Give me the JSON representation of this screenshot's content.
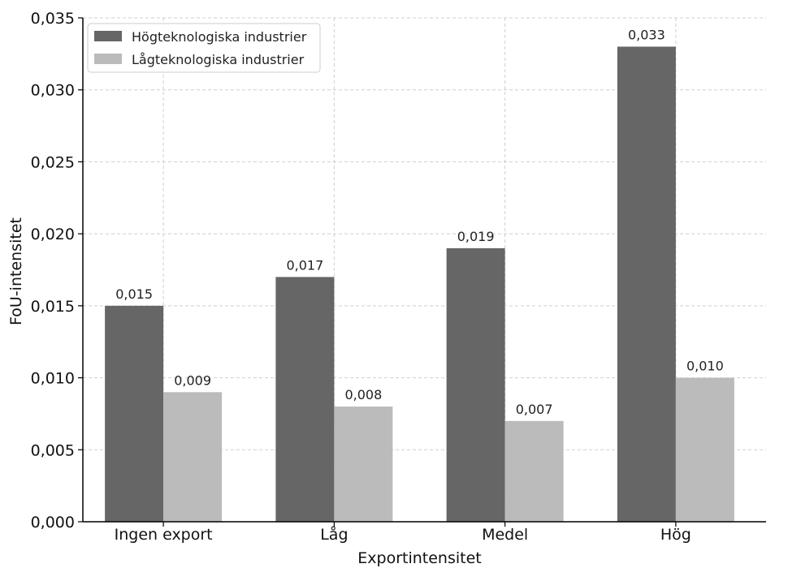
{
  "chart_data": {
    "type": "bar",
    "categories": [
      "Ingen export",
      "Låg",
      "Medel",
      "Hög"
    ],
    "series": [
      {
        "name": "Högteknologiska industrier",
        "values": [
          0.015,
          0.017,
          0.019,
          0.033
        ],
        "labels": [
          "0,015",
          "0,017",
          "0,019",
          "0,033"
        ],
        "color": "#666666"
      },
      {
        "name": "Lågteknologiska industrier",
        "values": [
          0.009,
          0.008,
          0.007,
          0.01
        ],
        "labels": [
          "0,009",
          "0,008",
          "0,007",
          "0,010"
        ],
        "color": "#bbbbbb"
      }
    ],
    "xlabel": "Exportintensitet",
    "ylabel": "FoU-intensitet",
    "ylim": [
      0,
      0.035
    ],
    "yticks": [
      0,
      0.005,
      0.01,
      0.015,
      0.02,
      0.025,
      0.03,
      0.035
    ],
    "ytick_labels": [
      "0,000",
      "0,005",
      "0,010",
      "0,015",
      "0,020",
      "0,025",
      "0,030",
      "0,035"
    ],
    "grid": true,
    "legend_position": "top-left"
  }
}
